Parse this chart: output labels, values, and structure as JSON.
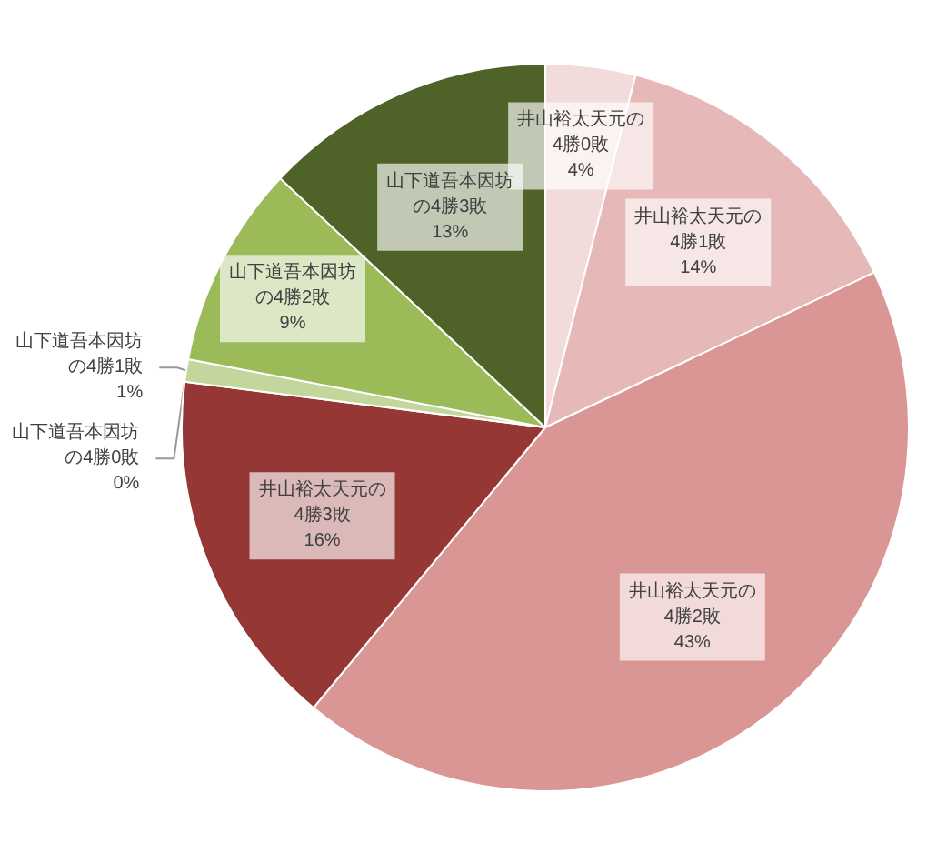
{
  "chart_data": {
    "type": "pie",
    "categories": [
      "井山裕太天元の4勝0敗",
      "井山裕太天元の4勝1敗",
      "井山裕太天元の4勝2敗",
      "井山裕太天元の4勝3敗",
      "山下道吾本因坊の4勝0敗",
      "山下道吾本因坊の4勝1敗",
      "山下道吾本因坊の4勝2敗",
      "山下道吾本因坊の4勝3敗"
    ],
    "values": [
      4,
      14,
      43,
      16,
      0,
      1,
      9,
      13
    ],
    "colors": [
      "#f2dcdb",
      "#e6b9b8",
      "#d99694",
      "#953735",
      "#d7e4bd",
      "#c3d69b",
      "#9bbb59",
      "#4f6228"
    ],
    "value_labels": [
      "4%",
      "14%",
      "43%",
      "16%",
      "0%",
      "1%",
      "9%",
      "13%"
    ],
    "legend": false
  }
}
